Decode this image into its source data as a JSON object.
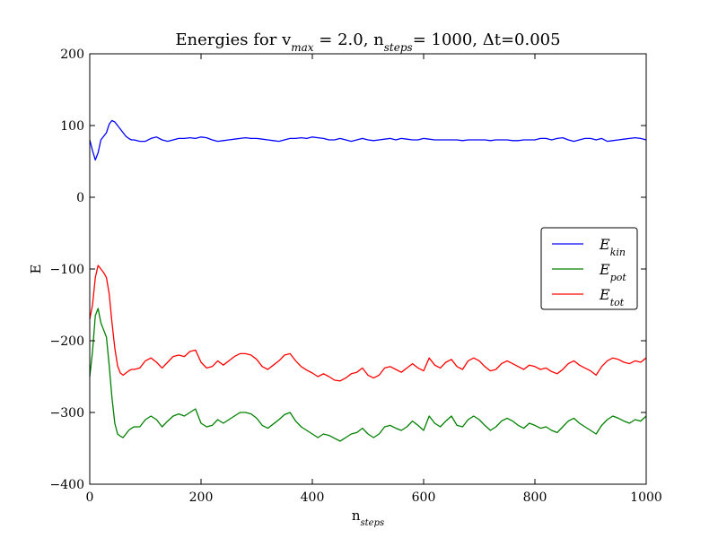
{
  "chart_data": {
    "type": "line",
    "title": {
      "parts": [
        {
          "text": "Energies for v",
          "sub": false
        },
        {
          "text": "max",
          "sub": true
        },
        {
          "text": " = 2.0, n",
          "sub": false
        },
        {
          "text": "steps",
          "sub": true
        },
        {
          "text": "= 1000, Δt=0.005",
          "sub": false
        }
      ]
    },
    "xlabel": {
      "main": "n",
      "sub": "steps"
    },
    "ylabel": "E",
    "xlim": [
      0,
      1000
    ],
    "ylim": [
      -400,
      200
    ],
    "xticks": [
      0,
      200,
      400,
      600,
      800,
      1000
    ],
    "yticks": [
      -400,
      -300,
      -200,
      -100,
      0,
      100,
      200
    ],
    "ytick_labels": [
      "−400",
      "−300",
      "−200",
      "−100",
      "0",
      "100",
      "200"
    ],
    "xtick_labels": [
      "0",
      "200",
      "400",
      "600",
      "800",
      "1000"
    ],
    "grid": false,
    "legend_position": "center-right",
    "x": [
      0,
      5,
      10,
      15,
      20,
      25,
      30,
      35,
      40,
      45,
      50,
      55,
      60,
      65,
      70,
      75,
      80,
      90,
      100,
      110,
      120,
      130,
      140,
      150,
      160,
      170,
      180,
      190,
      200,
      210,
      220,
      230,
      240,
      250,
      260,
      270,
      280,
      290,
      300,
      310,
      320,
      330,
      340,
      350,
      360,
      370,
      380,
      390,
      400,
      410,
      420,
      430,
      440,
      450,
      460,
      470,
      480,
      490,
      500,
      510,
      520,
      530,
      540,
      550,
      560,
      570,
      580,
      590,
      600,
      610,
      620,
      630,
      640,
      650,
      660,
      670,
      680,
      690,
      700,
      710,
      720,
      730,
      740,
      750,
      760,
      770,
      780,
      790,
      800,
      810,
      820,
      830,
      840,
      850,
      860,
      870,
      880,
      890,
      900,
      910,
      920,
      930,
      940,
      950,
      960,
      970,
      980,
      990,
      1000
    ],
    "series": [
      {
        "name": "E_kin",
        "label_main": "E",
        "label_sub": "kin",
        "color": "#0000ff",
        "values": [
          80,
          65,
          52,
          62,
          80,
          85,
          90,
          102,
          107,
          105,
          100,
          95,
          90,
          85,
          82,
          80,
          80,
          78,
          78,
          82,
          84,
          80,
          78,
          80,
          82,
          82,
          83,
          82,
          84,
          83,
          80,
          78,
          79,
          80,
          81,
          82,
          83,
          82,
          82,
          81,
          80,
          79,
          78,
          80,
          82,
          82,
          83,
          82,
          84,
          83,
          82,
          80,
          80,
          82,
          80,
          78,
          80,
          82,
          80,
          79,
          80,
          81,
          82,
          80,
          82,
          81,
          80,
          80,
          82,
          81,
          80,
          80,
          80,
          80,
          80,
          79,
          80,
          80,
          80,
          80,
          79,
          80,
          80,
          80,
          79,
          79,
          80,
          80,
          80,
          82,
          82,
          80,
          82,
          83,
          80,
          78,
          80,
          82,
          82,
          80,
          82,
          78,
          79,
          80,
          81,
          82,
          83,
          82,
          80
        ]
      },
      {
        "name": "E_pot",
        "label_main": "E",
        "label_sub": "pot",
        "color": "#008000",
        "values": [
          -250,
          -215,
          -165,
          -155,
          -175,
          -185,
          -195,
          -235,
          -280,
          -315,
          -330,
          -333,
          -335,
          -330,
          -325,
          -322,
          -320,
          -320,
          -310,
          -305,
          -310,
          -320,
          -312,
          -305,
          -302,
          -305,
          -300,
          -295,
          -315,
          -320,
          -318,
          -310,
          -315,
          -310,
          -305,
          -300,
          -300,
          -302,
          -308,
          -318,
          -322,
          -316,
          -310,
          -303,
          -300,
          -312,
          -320,
          -325,
          -330,
          -335,
          -330,
          -332,
          -336,
          -340,
          -335,
          -330,
          -328,
          -322,
          -330,
          -335,
          -330,
          -320,
          -318,
          -322,
          -325,
          -320,
          -312,
          -318,
          -325,
          -305,
          -315,
          -320,
          -312,
          -305,
          -318,
          -320,
          -310,
          -305,
          -310,
          -318,
          -325,
          -320,
          -312,
          -308,
          -312,
          -318,
          -322,
          -315,
          -318,
          -322,
          -320,
          -325,
          -328,
          -320,
          -312,
          -308,
          -315,
          -320,
          -325,
          -330,
          -318,
          -310,
          -305,
          -308,
          -312,
          -315,
          -310,
          -312,
          -305
        ]
      },
      {
        "name": "E_tot",
        "label_main": "E",
        "label_sub": "tot",
        "color": "#ff0000",
        "values": [
          -170,
          -150,
          -112,
          -95,
          -100,
          -105,
          -112,
          -135,
          -175,
          -210,
          -235,
          -245,
          -248,
          -245,
          -242,
          -240,
          -240,
          -238,
          -228,
          -224,
          -230,
          -238,
          -230,
          -222,
          -220,
          -222,
          -215,
          -213,
          -230,
          -238,
          -236,
          -228,
          -234,
          -228,
          -222,
          -218,
          -218,
          -220,
          -226,
          -236,
          -240,
          -234,
          -228,
          -220,
          -218,
          -228,
          -236,
          -241,
          -245,
          -250,
          -246,
          -250,
          -255,
          -256,
          -252,
          -246,
          -244,
          -238,
          -248,
          -252,
          -248,
          -238,
          -236,
          -240,
          -244,
          -238,
          -232,
          -238,
          -242,
          -224,
          -234,
          -238,
          -230,
          -226,
          -236,
          -240,
          -228,
          -224,
          -228,
          -236,
          -242,
          -240,
          -232,
          -228,
          -232,
          -236,
          -240,
          -234,
          -236,
          -240,
          -238,
          -243,
          -246,
          -240,
          -232,
          -228,
          -234,
          -238,
          -242,
          -248,
          -236,
          -228,
          -224,
          -226,
          -230,
          -232,
          -228,
          -230,
          -224
        ]
      }
    ]
  }
}
